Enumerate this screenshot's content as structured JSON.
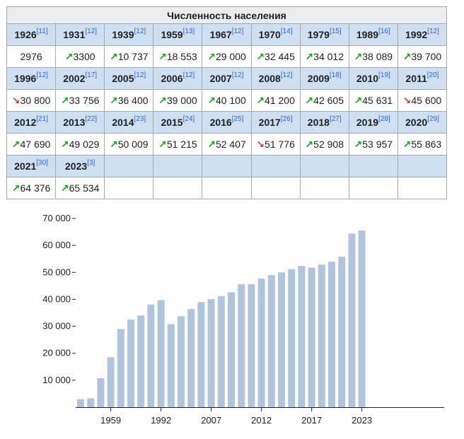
{
  "table": {
    "caption": "Численность населения",
    "rows": [
      [
        {
          "year": "1926",
          "ref": "[11]",
          "value": "2976",
          "trend": ""
        },
        {
          "year": "1931",
          "ref": "[12]",
          "value": "3300",
          "trend": "up"
        },
        {
          "year": "1939",
          "ref": "[12]",
          "value": "10 737",
          "trend": "up"
        },
        {
          "year": "1959",
          "ref": "[13]",
          "value": "18 553",
          "trend": "up"
        },
        {
          "year": "1967",
          "ref": "[12]",
          "value": "29 000",
          "trend": "up"
        },
        {
          "year": "1970",
          "ref": "[14]",
          "value": "32 445",
          "trend": "up"
        },
        {
          "year": "1979",
          "ref": "[15]",
          "value": "34 012",
          "trend": "up"
        },
        {
          "year": "1989",
          "ref": "[16]",
          "value": "38 089",
          "trend": "up"
        },
        {
          "year": "1992",
          "ref": "[12]",
          "value": "39 700",
          "trend": "up"
        }
      ],
      [
        {
          "year": "1996",
          "ref": "[12]",
          "value": "30 800",
          "trend": "down"
        },
        {
          "year": "2002",
          "ref": "[17]",
          "value": "33 756",
          "trend": "up"
        },
        {
          "year": "2005",
          "ref": "[12]",
          "value": "36 400",
          "trend": "up"
        },
        {
          "year": "2006",
          "ref": "[12]",
          "value": "39 000",
          "trend": "up"
        },
        {
          "year": "2007",
          "ref": "[12]",
          "value": "40 100",
          "trend": "up"
        },
        {
          "year": "2008",
          "ref": "[12]",
          "value": "41 200",
          "trend": "up"
        },
        {
          "year": "2009",
          "ref": "[18]",
          "value": "42 605",
          "trend": "up"
        },
        {
          "year": "2010",
          "ref": "[19]",
          "value": "45 631",
          "trend": "up"
        },
        {
          "year": "2011",
          "ref": "[20]",
          "value": "45 600",
          "trend": "down"
        }
      ],
      [
        {
          "year": "2012",
          "ref": "[21]",
          "value": "47 690",
          "trend": "up"
        },
        {
          "year": "2013",
          "ref": "[22]",
          "value": "49 029",
          "trend": "up"
        },
        {
          "year": "2014",
          "ref": "[23]",
          "value": "50 009",
          "trend": "up"
        },
        {
          "year": "2015",
          "ref": "[24]",
          "value": "51 215",
          "trend": "up"
        },
        {
          "year": "2016",
          "ref": "[25]",
          "value": "52 407",
          "trend": "up"
        },
        {
          "year": "2017",
          "ref": "[26]",
          "value": "51 776",
          "trend": "down"
        },
        {
          "year": "2018",
          "ref": "[27]",
          "value": "52 908",
          "trend": "up"
        },
        {
          "year": "2019",
          "ref": "[28]",
          "value": "53 957",
          "trend": "up"
        },
        {
          "year": "2020",
          "ref": "[29]",
          "value": "55 863",
          "trend": "up"
        }
      ],
      [
        {
          "year": "2021",
          "ref": "[30]",
          "value": "64 376",
          "trend": "up"
        },
        {
          "year": "2023",
          "ref": "[3]",
          "value": "65 534",
          "trend": "up"
        }
      ]
    ]
  },
  "colors": {
    "bar": "#b0c4de",
    "header_bg": "#cedff2",
    "caption_bg": "#eaecf0",
    "border": "#a2a9b1",
    "up": "#14a114",
    "down": "#d73333",
    "ref": "#3366cc"
  },
  "chart_data": {
    "type": "bar",
    "categories": [
      "1926",
      "1931",
      "1939",
      "1959",
      "1967",
      "1970",
      "1979",
      "1989",
      "1992",
      "1996",
      "2002",
      "2005",
      "2006",
      "2007",
      "2008",
      "2009",
      "2010",
      "2011",
      "2012",
      "2013",
      "2014",
      "2015",
      "2016",
      "2017",
      "2018",
      "2019",
      "2020",
      "2021",
      "2023"
    ],
    "values": [
      2976,
      3300,
      10737,
      18553,
      29000,
      32445,
      34012,
      38089,
      39700,
      30800,
      33756,
      36400,
      39000,
      40100,
      41200,
      42605,
      45631,
      45600,
      47690,
      49029,
      50009,
      51215,
      52407,
      51776,
      52908,
      53957,
      55863,
      64376,
      65534
    ],
    "x_tick_labels": [
      "1959",
      "1992",
      "2007",
      "2012",
      "2017",
      "2023"
    ],
    "y_ticks": [
      10000,
      20000,
      30000,
      40000,
      50000,
      60000,
      70000
    ],
    "y_tick_labels": [
      "10 000",
      "20 000",
      "30 000",
      "40 000",
      "50 000",
      "60 000",
      "70 000"
    ],
    "ylim": [
      0,
      70000
    ],
    "title": "",
    "xlabel": "",
    "ylabel": "",
    "grid": false
  }
}
